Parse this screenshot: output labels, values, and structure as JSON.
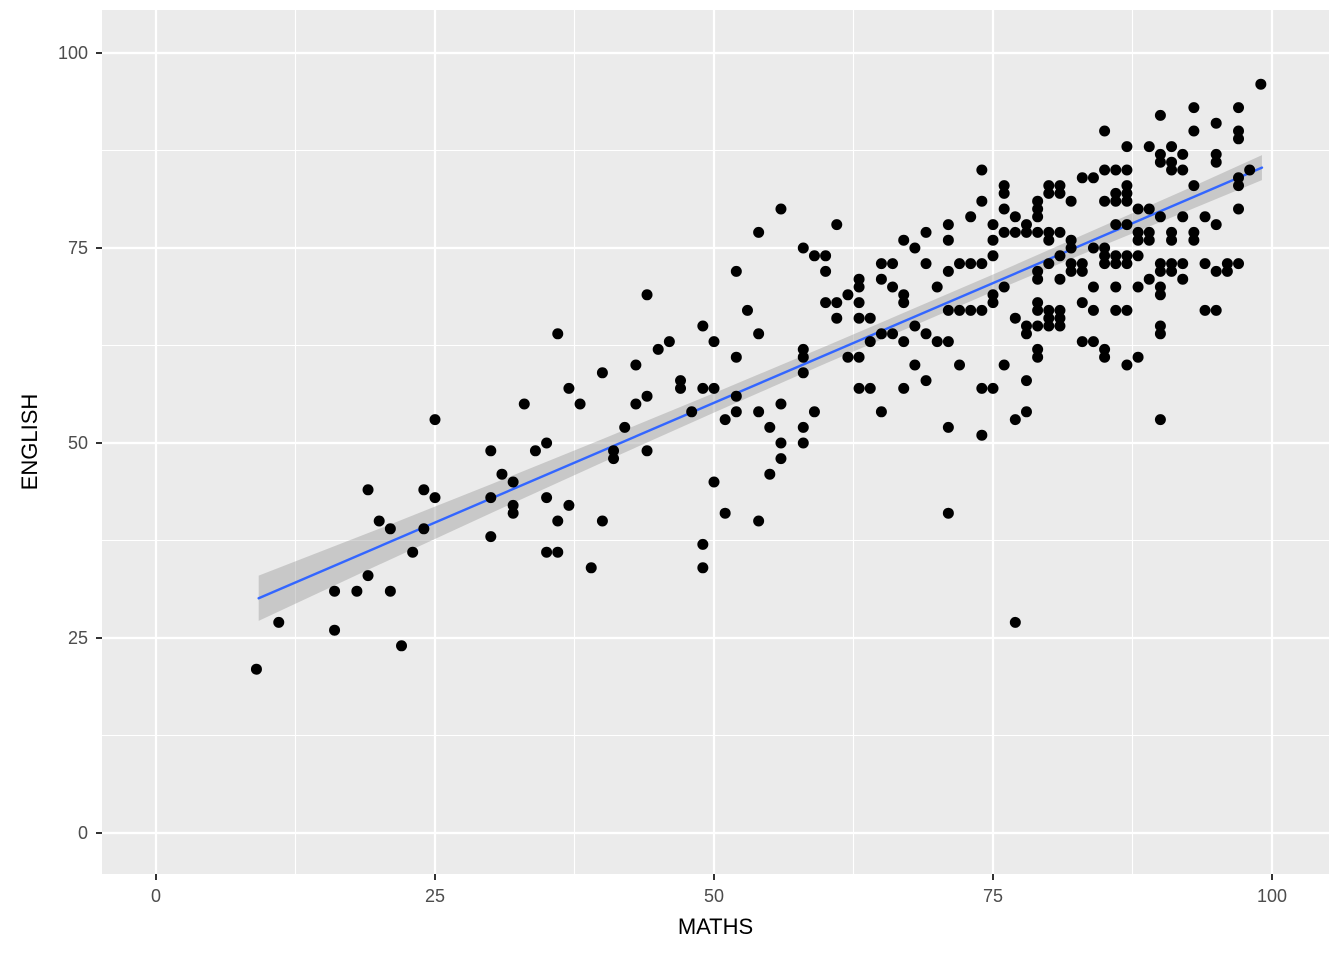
{
  "chart_data": {
    "type": "scatter",
    "title": "",
    "xlabel": "MATHS",
    "ylabel": "ENGLISH",
    "x_ticks": [
      0,
      25,
      50,
      75,
      100
    ],
    "y_ticks": [
      0,
      25,
      50,
      75,
      100
    ],
    "xlim": [
      -4.8,
      105.2
    ],
    "ylim": [
      -5.3,
      105.5
    ],
    "grid": "white major and minor gridlines on gray panel",
    "legend": "none",
    "marker": "filled black circle",
    "points": [
      [
        9,
        21
      ],
      [
        11,
        27
      ],
      [
        16,
        26
      ],
      [
        16,
        31
      ],
      [
        18,
        31
      ],
      [
        19,
        33
      ],
      [
        19,
        44
      ],
      [
        20,
        40
      ],
      [
        21,
        31
      ],
      [
        21,
        39
      ],
      [
        22,
        24
      ],
      [
        23,
        36
      ],
      [
        24,
        39
      ],
      [
        24,
        44
      ],
      [
        25,
        43
      ],
      [
        25,
        53
      ],
      [
        30,
        38
      ],
      [
        30,
        43
      ],
      [
        30,
        49
      ],
      [
        31,
        46
      ],
      [
        32,
        41
      ],
      [
        32,
        42
      ],
      [
        32,
        45
      ],
      [
        33,
        55
      ],
      [
        34,
        49
      ],
      [
        35,
        36
      ],
      [
        35,
        43
      ],
      [
        35,
        50
      ],
      [
        36,
        36
      ],
      [
        36,
        40
      ],
      [
        36,
        64
      ],
      [
        37,
        42
      ],
      [
        37,
        57
      ],
      [
        38,
        55
      ],
      [
        39,
        34
      ],
      [
        40,
        40
      ],
      [
        40,
        59
      ],
      [
        41,
        48
      ],
      [
        41,
        49
      ],
      [
        42,
        52
      ],
      [
        43,
        55
      ],
      [
        43,
        60
      ],
      [
        44,
        49
      ],
      [
        44,
        56
      ],
      [
        44,
        69
      ],
      [
        45,
        62
      ],
      [
        46,
        63
      ],
      [
        47,
        57
      ],
      [
        47,
        58
      ],
      [
        48,
        54
      ],
      [
        49,
        34
      ],
      [
        49,
        37
      ],
      [
        49,
        57
      ],
      [
        49,
        65
      ],
      [
        50,
        45
      ],
      [
        50,
        57
      ],
      [
        50,
        63
      ],
      [
        51,
        41
      ],
      [
        51,
        53
      ],
      [
        52,
        54
      ],
      [
        52,
        56
      ],
      [
        52,
        61
      ],
      [
        52,
        72
      ],
      [
        53,
        67
      ],
      [
        54,
        40
      ],
      [
        54,
        54
      ],
      [
        54,
        64
      ],
      [
        54,
        77
      ],
      [
        55,
        46
      ],
      [
        55,
        52
      ],
      [
        56,
        48
      ],
      [
        56,
        50
      ],
      [
        56,
        55
      ],
      [
        56,
        80
      ],
      [
        58,
        50
      ],
      [
        58,
        52
      ],
      [
        58,
        59
      ],
      [
        58,
        61
      ],
      [
        58,
        62
      ],
      [
        58,
        75
      ],
      [
        59,
        54
      ],
      [
        59,
        74
      ],
      [
        60,
        68
      ],
      [
        60,
        72
      ],
      [
        60,
        74
      ],
      [
        61,
        66
      ],
      [
        61,
        68
      ],
      [
        61,
        78
      ],
      [
        62,
        61
      ],
      [
        62,
        69
      ],
      [
        63,
        57
      ],
      [
        63,
        61
      ],
      [
        63,
        66
      ],
      [
        63,
        68
      ],
      [
        63,
        70
      ],
      [
        63,
        71
      ],
      [
        64,
        57
      ],
      [
        64,
        63
      ],
      [
        64,
        66
      ],
      [
        65,
        54
      ],
      [
        65,
        64
      ],
      [
        65,
        71
      ],
      [
        65,
        73
      ],
      [
        66,
        64
      ],
      [
        66,
        70
      ],
      [
        66,
        73
      ],
      [
        67,
        57
      ],
      [
        67,
        63
      ],
      [
        67,
        68
      ],
      [
        67,
        69
      ],
      [
        67,
        76
      ],
      [
        68,
        60
      ],
      [
        68,
        65
      ],
      [
        68,
        75
      ],
      [
        69,
        58
      ],
      [
        69,
        64
      ],
      [
        69,
        73
      ],
      [
        69,
        77
      ],
      [
        70,
        63
      ],
      [
        70,
        70
      ],
      [
        71,
        41
      ],
      [
        71,
        52
      ],
      [
        71,
        63
      ],
      [
        71,
        67
      ],
      [
        71,
        72
      ],
      [
        71,
        76
      ],
      [
        71,
        78
      ],
      [
        72,
        60
      ],
      [
        72,
        67
      ],
      [
        72,
        73
      ],
      [
        73,
        67
      ],
      [
        73,
        73
      ],
      [
        73,
        79
      ],
      [
        74,
        51
      ],
      [
        74,
        57
      ],
      [
        74,
        67
      ],
      [
        74,
        73
      ],
      [
        74,
        81
      ],
      [
        74,
        85
      ],
      [
        75,
        57
      ],
      [
        75,
        68
      ],
      [
        75,
        69
      ],
      [
        75,
        74
      ],
      [
        75,
        76
      ],
      [
        75,
        78
      ],
      [
        76,
        60
      ],
      [
        76,
        70
      ],
      [
        76,
        77
      ],
      [
        76,
        80
      ],
      [
        76,
        82
      ],
      [
        76,
        83
      ],
      [
        77,
        27
      ],
      [
        77,
        53
      ],
      [
        77,
        66
      ],
      [
        77,
        77
      ],
      [
        77,
        79
      ],
      [
        78,
        54
      ],
      [
        78,
        58
      ],
      [
        78,
        64
      ],
      [
        78,
        65
      ],
      [
        78,
        77
      ],
      [
        78,
        78
      ],
      [
        79,
        61
      ],
      [
        79,
        62
      ],
      [
        79,
        65
      ],
      [
        79,
        67
      ],
      [
        79,
        68
      ],
      [
        79,
        71
      ],
      [
        79,
        72
      ],
      [
        79,
        77
      ],
      [
        79,
        79
      ],
      [
        79,
        80
      ],
      [
        79,
        81
      ],
      [
        80,
        65
      ],
      [
        80,
        66
      ],
      [
        80,
        67
      ],
      [
        80,
        73
      ],
      [
        80,
        76
      ],
      [
        80,
        77
      ],
      [
        80,
        82
      ],
      [
        80,
        83
      ],
      [
        81,
        65
      ],
      [
        81,
        66
      ],
      [
        81,
        67
      ],
      [
        81,
        71
      ],
      [
        81,
        74
      ],
      [
        81,
        77
      ],
      [
        81,
        82
      ],
      [
        81,
        83
      ],
      [
        82,
        72
      ],
      [
        82,
        73
      ],
      [
        82,
        75
      ],
      [
        82,
        76
      ],
      [
        82,
        81
      ],
      [
        83,
        63
      ],
      [
        83,
        68
      ],
      [
        83,
        72
      ],
      [
        83,
        73
      ],
      [
        83,
        84
      ],
      [
        84,
        63
      ],
      [
        84,
        67
      ],
      [
        84,
        70
      ],
      [
        84,
        75
      ],
      [
        84,
        84
      ],
      [
        85,
        61
      ],
      [
        85,
        62
      ],
      [
        85,
        73
      ],
      [
        85,
        74
      ],
      [
        85,
        75
      ],
      [
        85,
        81
      ],
      [
        85,
        85
      ],
      [
        85,
        90
      ],
      [
        86,
        67
      ],
      [
        86,
        70
      ],
      [
        86,
        73
      ],
      [
        86,
        74
      ],
      [
        86,
        78
      ],
      [
        86,
        81
      ],
      [
        86,
        82
      ],
      [
        86,
        85
      ],
      [
        87,
        60
      ],
      [
        87,
        67
      ],
      [
        87,
        73
      ],
      [
        87,
        74
      ],
      [
        87,
        78
      ],
      [
        87,
        81
      ],
      [
        87,
        82
      ],
      [
        87,
        83
      ],
      [
        87,
        85
      ],
      [
        87,
        88
      ],
      [
        88,
        61
      ],
      [
        88,
        70
      ],
      [
        88,
        74
      ],
      [
        88,
        76
      ],
      [
        88,
        77
      ],
      [
        88,
        80
      ],
      [
        89,
        71
      ],
      [
        89,
        76
      ],
      [
        89,
        77
      ],
      [
        89,
        80
      ],
      [
        89,
        88
      ],
      [
        90,
        53
      ],
      [
        90,
        64
      ],
      [
        90,
        65
      ],
      [
        90,
        69
      ],
      [
        90,
        70
      ],
      [
        90,
        72
      ],
      [
        90,
        73
      ],
      [
        90,
        79
      ],
      [
        90,
        86
      ],
      [
        90,
        87
      ],
      [
        90,
        92
      ],
      [
        91,
        72
      ],
      [
        91,
        73
      ],
      [
        91,
        76
      ],
      [
        91,
        77
      ],
      [
        91,
        85
      ],
      [
        91,
        86
      ],
      [
        91,
        88
      ],
      [
        92,
        71
      ],
      [
        92,
        73
      ],
      [
        92,
        79
      ],
      [
        92,
        85
      ],
      [
        92,
        87
      ],
      [
        93,
        76
      ],
      [
        93,
        77
      ],
      [
        93,
        83
      ],
      [
        93,
        90
      ],
      [
        93,
        93
      ],
      [
        94,
        67
      ],
      [
        94,
        73
      ],
      [
        94,
        79
      ],
      [
        95,
        67
      ],
      [
        95,
        72
      ],
      [
        95,
        78
      ],
      [
        95,
        86
      ],
      [
        95,
        87
      ],
      [
        95,
        91
      ],
      [
        96,
        72
      ],
      [
        96,
        73
      ],
      [
        97,
        73
      ],
      [
        97,
        80
      ],
      [
        97,
        83
      ],
      [
        97,
        84
      ],
      [
        97,
        89
      ],
      [
        97,
        90
      ],
      [
        97,
        93
      ],
      [
        98,
        85
      ],
      [
        99,
        96
      ]
    ],
    "smooth": {
      "method": "linear (geom_smooth with confidence band)",
      "line_x": [
        9.2,
        99.1
      ],
      "line_y": [
        30.1,
        85.3
      ],
      "band_x": [
        9.2,
        20,
        30,
        40,
        50,
        60,
        68,
        75,
        85,
        92,
        99.1
      ],
      "band_upper": [
        33.0,
        39.0,
        44.7,
        50.5,
        56.4,
        62.4,
        67.3,
        71.6,
        77.9,
        82.3,
        86.9
      ],
      "band_lower": [
        27.2,
        34.4,
        41.0,
        47.5,
        53.9,
        60.2,
        65.1,
        69.4,
        75.4,
        79.5,
        83.7
      ]
    },
    "colors": {
      "panel_bg": "#EBEBEB",
      "grid": "#FFFFFF",
      "point": "#000000",
      "line": "#3366FF",
      "band": "#999999",
      "band_opacity": 0.42,
      "tick_label": "#4D4D4D",
      "tick_mark": "#333333",
      "axis_title": "#000000"
    }
  }
}
